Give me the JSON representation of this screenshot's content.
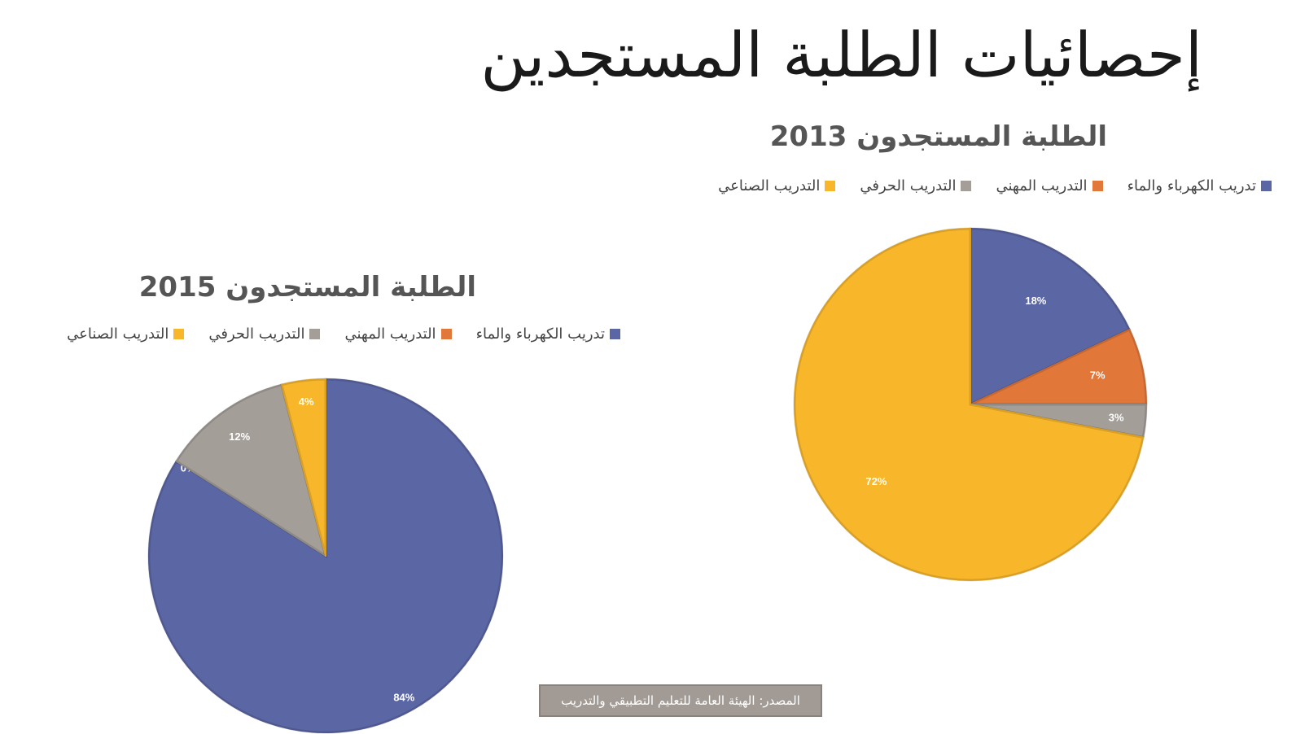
{
  "page": {
    "title": "إحصائيات الطلبة المستجدين",
    "source": "المصدر: الهيئة العامة للتعليم التطبيقي والتدريب"
  },
  "colors": {
    "electric_water": "#5b66a4",
    "vocational": "#e2773a",
    "craft": "#a39e98",
    "industrial": "#f8b72b"
  },
  "chart_data": [
    {
      "type": "pie",
      "title": "الطلبة المستجدون 2013",
      "legend": [
        "تدريب الكهرباء والماء",
        "التدريب المهني",
        "التدريب الحرفي",
        "التدريب الصناعي"
      ],
      "slices": [
        {
          "name": "تدريب الكهرباء والماء",
          "value": 18,
          "label": "18%",
          "color": "#5b66a4"
        },
        {
          "name": "التدريب المهني",
          "value": 7,
          "label": "7%",
          "color": "#e2773a"
        },
        {
          "name": "التدريب الحرفي",
          "value": 3,
          "label": "3%",
          "color": "#a39e98"
        },
        {
          "name": "التدريب الصناعي",
          "value": 72,
          "label": "72%",
          "color": "#f8b72b"
        }
      ]
    },
    {
      "type": "pie",
      "title": "الطلبة المستجدون 2015",
      "legend": [
        "تدريب الكهرباء والماء",
        "التدريب المهني",
        "التدريب الحرفي",
        "التدريب الصناعي"
      ],
      "slices": [
        {
          "name": "تدريب الكهرباء والماء",
          "value": 84,
          "label": "84%",
          "color": "#5b66a4"
        },
        {
          "name": "التدريب المهني",
          "value": 0,
          "label": "0%",
          "color": "#e2773a"
        },
        {
          "name": "التدريب الحرفي",
          "value": 12,
          "label": "12%",
          "color": "#a39e98"
        },
        {
          "name": "التدريب الصناعي",
          "value": 4,
          "label": "4%",
          "color": "#f8b72b"
        }
      ]
    }
  ]
}
